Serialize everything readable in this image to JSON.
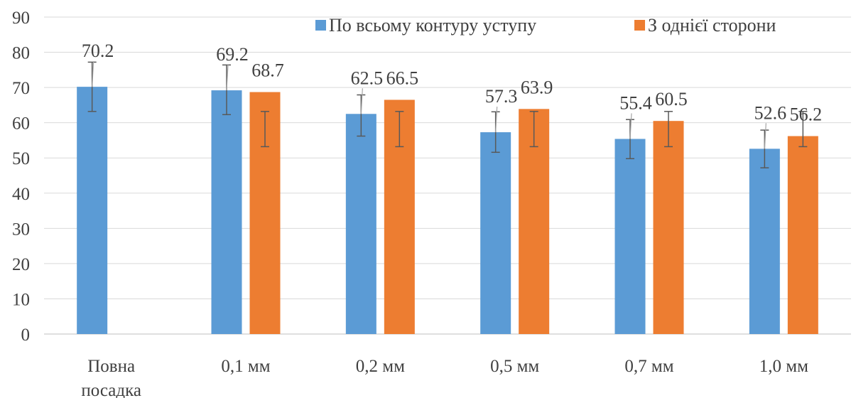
{
  "chart_data": {
    "type": "bar",
    "categories": [
      "Повна посадка",
      "0,1 мм",
      "0,2 мм",
      "0,5 мм",
      "0,7 мм",
      "1,0 мм"
    ],
    "category_lines": [
      [
        "Повна",
        "посадка"
      ],
      [
        "0,1 мм"
      ],
      [
        "0,2 мм"
      ],
      [
        "0,5 мм"
      ],
      [
        "0,7 мм"
      ],
      [
        "1,0 мм"
      ]
    ],
    "series": [
      {
        "name": "По всьому контуру уступу",
        "color": "#5b9bd5",
        "values": [
          70.2,
          69.2,
          62.5,
          57.3,
          55.4,
          52.6
        ],
        "error_low": [
          63.2,
          62.3,
          56.2,
          51.6,
          49.8,
          47.2
        ],
        "error_high": [
          77.2,
          76.4,
          67.9,
          63.1,
          60.9,
          57.9
        ],
        "labels": [
          "70.2",
          "69.2",
          "62.5",
          "57.3",
          "55.4",
          "52.6"
        ]
      },
      {
        "name": "З однієї сторони",
        "color": "#ed7d31",
        "values": [
          null,
          68.7,
          66.5,
          63.9,
          60.5,
          56.2
        ],
        "error_low": [
          null,
          53.2,
          53.2,
          53.2,
          53.2,
          53.2
        ],
        "error_high": [
          null,
          63.2,
          63.2,
          63.2,
          63.2,
          63.2
        ],
        "labels": [
          "",
          "68.7",
          "66.5",
          "63.9",
          "60.5",
          "56.2"
        ]
      }
    ],
    "y_ticks": [
      "0",
      "10",
      "20",
      "30",
      "40",
      "50",
      "60",
      "70",
      "80",
      "90"
    ],
    "ylim": [
      0,
      90
    ],
    "grid": true,
    "legend_position": "top-right"
  }
}
